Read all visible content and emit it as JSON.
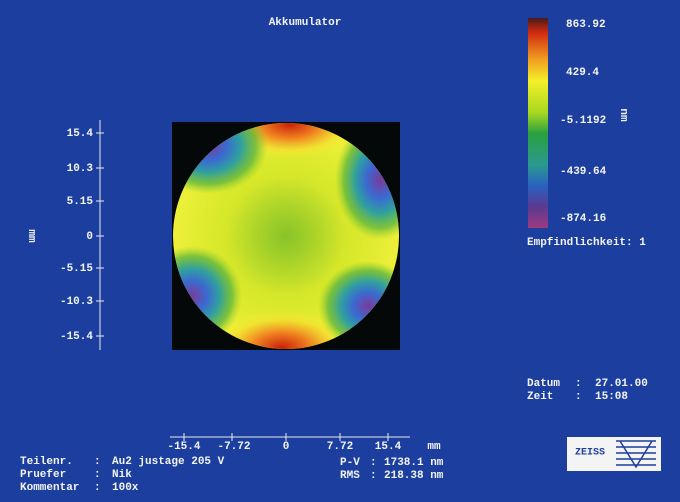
{
  "title": "Akkumulator",
  "colorbar": {
    "labels": [
      "863.92",
      "429.4",
      "-5.1192",
      "-439.64",
      "-874.16"
    ],
    "unit": "nm"
  },
  "sensitivity": "Empfindlichkeit: 1",
  "y_axis": {
    "unit": "mm",
    "labels": [
      "15.4",
      "10.3",
      "5.15",
      "0",
      "-5.15",
      "-10.3",
      "-15.4"
    ]
  },
  "x_axis": {
    "unit": "mm",
    "labels": [
      "-15.4",
      "-7.72",
      "0",
      "7.72",
      "15.4"
    ]
  },
  "datetime": {
    "rows": [
      [
        "Datum",
        ":",
        "27.01.00"
      ],
      [
        "Zeit",
        ":",
        "15:08"
      ]
    ]
  },
  "info": {
    "rows": [
      [
        "Teilenr.",
        ":",
        "Au2 justage 205 V"
      ],
      [
        "Pruefer",
        ":",
        "Nik"
      ],
      [
        "Kommentar",
        ":",
        "100x"
      ]
    ]
  },
  "stats": {
    "rows": [
      [
        "P-V",
        ":",
        "1738.1 nm"
      ],
      [
        "RMS",
        ":",
        "218.38 nm"
      ]
    ]
  },
  "logo": "ZEISS"
}
